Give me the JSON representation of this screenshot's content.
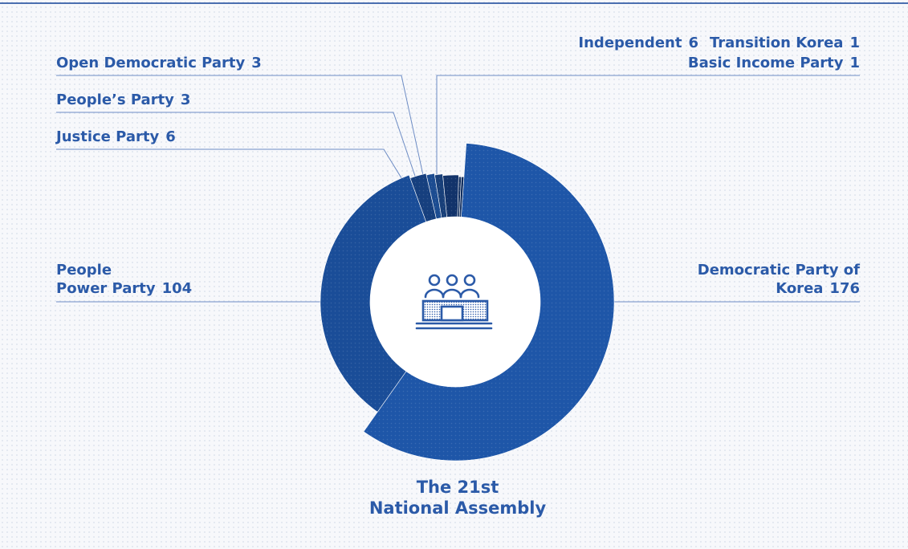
{
  "chart_data": {
    "type": "pie",
    "title": "The 21st National Assembly",
    "total_seats": 300,
    "slices": [
      {
        "label": "Democratic Party of Korea",
        "value": 176,
        "color": "#1e56a8"
      },
      {
        "label": "People Power Party",
        "value": 104,
        "color": "#1a4d98"
      },
      {
        "label": "Justice Party",
        "value": 6,
        "color": "#163f7e"
      },
      {
        "label": "People's Party",
        "value": 3,
        "color": "#1c4c91"
      },
      {
        "label": "Open Democratic Party",
        "value": 3,
        "color": "#183f79"
      },
      {
        "label": "Independent",
        "value": 6,
        "color": "#12336a"
      },
      {
        "label": "Transition Korea",
        "value": 1,
        "color": "#0f2d5e"
      },
      {
        "label": "Basic Income Party",
        "value": 1,
        "color": "#0f2d5e"
      }
    ]
  },
  "labels": {
    "democratic": {
      "name": "Democratic Party of",
      "name2": "Korea",
      "value": "176"
    },
    "ppp": {
      "name": "People",
      "name2": "Power Party",
      "value": "104"
    },
    "justice": {
      "name": "Justice Party",
      "value": "6"
    },
    "peoples": {
      "name": "People’s Party",
      "value": "3"
    },
    "open_dem": {
      "name": "Open Democratic Party",
      "value": "3"
    },
    "independent": {
      "name": "Independent",
      "value": "6"
    },
    "transition": {
      "name": "Transition Korea",
      "value": "1"
    },
    "basic_income": {
      "name": "Basic Income Party",
      "value": "1"
    }
  },
  "title_lines": [
    "The 21st",
    "National Assembly"
  ],
  "center_icon": "assembly-icon"
}
